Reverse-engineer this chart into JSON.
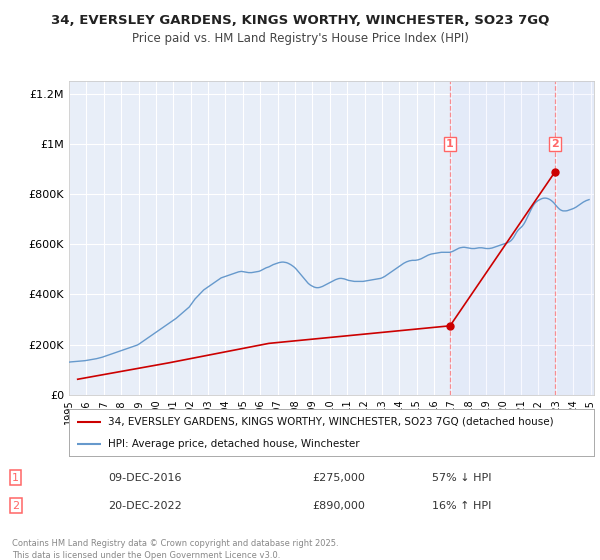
{
  "title_line1": "34, EVERSLEY GARDENS, KINGS WORTHY, WINCHESTER, SO23 7GQ",
  "title_line2": "Price paid vs. HM Land Registry's House Price Index (HPI)",
  "background_color": "#ffffff",
  "plot_bg_color": "#e8eef8",
  "grid_color": "#ffffff",
  "hpi_color": "#6699cc",
  "price_color": "#cc0000",
  "dashed_color": "#ff6666",
  "transaction1_date": "09-DEC-2016",
  "transaction1_price": 275000,
  "transaction1_hpi_diff": "57% ↓ HPI",
  "transaction2_date": "20-DEC-2022",
  "transaction2_price": 890000,
  "transaction2_hpi_diff": "16% ↑ HPI",
  "legend_label1": "34, EVERSLEY GARDENS, KINGS WORTHY, WINCHESTER, SO23 7GQ (detached house)",
  "legend_label2": "HPI: Average price, detached house, Winchester",
  "footer": "Contains HM Land Registry data © Crown copyright and database right 2025.\nThis data is licensed under the Open Government Licence v3.0.",
  "yticks": [
    0,
    200000,
    400000,
    600000,
    800000,
    1000000,
    1200000
  ],
  "ytick_labels": [
    "£0",
    "£200K",
    "£400K",
    "£600K",
    "£800K",
    "£1M",
    "£1.2M"
  ],
  "xmin_year": 1995,
  "xmax_year": 2025,
  "transaction1_x": 2016.92,
  "transaction2_x": 2022.97,
  "xtick_years": [
    1995,
    1996,
    1997,
    1998,
    1999,
    2000,
    2001,
    2002,
    2003,
    2004,
    2005,
    2006,
    2007,
    2008,
    2009,
    2010,
    2011,
    2012,
    2013,
    2014,
    2015,
    2016,
    2017,
    2018,
    2019,
    2020,
    2021,
    2022,
    2023,
    2024,
    2025
  ],
  "price_years": [
    1995.5,
    2000.75,
    2006.5,
    2016.92,
    2022.97
  ],
  "price_values": [
    62000,
    127500,
    205000,
    275000,
    890000
  ],
  "hpi_data": [
    [
      1995.0,
      130000
    ],
    [
      1995.083,
      131000
    ],
    [
      1995.167,
      131500
    ],
    [
      1995.25,
      132000
    ],
    [
      1995.333,
      132500
    ],
    [
      1995.417,
      133000
    ],
    [
      1995.5,
      133500
    ],
    [
      1995.583,
      134000
    ],
    [
      1995.667,
      134500
    ],
    [
      1995.75,
      135000
    ],
    [
      1995.833,
      135500
    ],
    [
      1995.917,
      136000
    ],
    [
      1996.0,
      137000
    ],
    [
      1996.083,
      138000
    ],
    [
      1996.167,
      139000
    ],
    [
      1996.25,
      140000
    ],
    [
      1996.333,
      141000
    ],
    [
      1996.417,
      142000
    ],
    [
      1996.5,
      143000
    ],
    [
      1996.583,
      144000
    ],
    [
      1996.667,
      145500
    ],
    [
      1996.75,
      147000
    ],
    [
      1996.833,
      148500
    ],
    [
      1996.917,
      150000
    ],
    [
      1997.0,
      152000
    ],
    [
      1997.083,
      154000
    ],
    [
      1997.167,
      156000
    ],
    [
      1997.25,
      158000
    ],
    [
      1997.333,
      160000
    ],
    [
      1997.417,
      162000
    ],
    [
      1997.5,
      164000
    ],
    [
      1997.583,
      166000
    ],
    [
      1997.667,
      168000
    ],
    [
      1997.75,
      170000
    ],
    [
      1997.833,
      172000
    ],
    [
      1997.917,
      174000
    ],
    [
      1998.0,
      176000
    ],
    [
      1998.083,
      178000
    ],
    [
      1998.167,
      180000
    ],
    [
      1998.25,
      182000
    ],
    [
      1998.333,
      184000
    ],
    [
      1998.417,
      186000
    ],
    [
      1998.5,
      188000
    ],
    [
      1998.583,
      190000
    ],
    [
      1998.667,
      192000
    ],
    [
      1998.75,
      194000
    ],
    [
      1998.833,
      196000
    ],
    [
      1998.917,
      198000
    ],
    [
      1999.0,
      201000
    ],
    [
      1999.083,
      205000
    ],
    [
      1999.167,
      209000
    ],
    [
      1999.25,
      213000
    ],
    [
      1999.333,
      217000
    ],
    [
      1999.417,
      221000
    ],
    [
      1999.5,
      225000
    ],
    [
      1999.583,
      229000
    ],
    [
      1999.667,
      233000
    ],
    [
      1999.75,
      237000
    ],
    [
      1999.833,
      241000
    ],
    [
      1999.917,
      245000
    ],
    [
      2000.0,
      249000
    ],
    [
      2000.083,
      253000
    ],
    [
      2000.167,
      257000
    ],
    [
      2000.25,
      261000
    ],
    [
      2000.333,
      265000
    ],
    [
      2000.417,
      269000
    ],
    [
      2000.5,
      273000
    ],
    [
      2000.583,
      277000
    ],
    [
      2000.667,
      281000
    ],
    [
      2000.75,
      285000
    ],
    [
      2000.833,
      289000
    ],
    [
      2000.917,
      293000
    ],
    [
      2001.0,
      297000
    ],
    [
      2001.083,
      301000
    ],
    [
      2001.167,
      305000
    ],
    [
      2001.25,
      310000
    ],
    [
      2001.333,
      315000
    ],
    [
      2001.417,
      320000
    ],
    [
      2001.5,
      325000
    ],
    [
      2001.583,
      330000
    ],
    [
      2001.667,
      335000
    ],
    [
      2001.75,
      340000
    ],
    [
      2001.833,
      345000
    ],
    [
      2001.917,
      350000
    ],
    [
      2002.0,
      358000
    ],
    [
      2002.083,
      366000
    ],
    [
      2002.167,
      374000
    ],
    [
      2002.25,
      382000
    ],
    [
      2002.333,
      388000
    ],
    [
      2002.417,
      394000
    ],
    [
      2002.5,
      400000
    ],
    [
      2002.583,
      406000
    ],
    [
      2002.667,
      412000
    ],
    [
      2002.75,
      418000
    ],
    [
      2002.833,
      422000
    ],
    [
      2002.917,
      426000
    ],
    [
      2003.0,
      430000
    ],
    [
      2003.083,
      434000
    ],
    [
      2003.167,
      438000
    ],
    [
      2003.25,
      442000
    ],
    [
      2003.333,
      446000
    ],
    [
      2003.417,
      450000
    ],
    [
      2003.5,
      454000
    ],
    [
      2003.583,
      458000
    ],
    [
      2003.667,
      462000
    ],
    [
      2003.75,
      466000
    ],
    [
      2003.833,
      468000
    ],
    [
      2003.917,
      470000
    ],
    [
      2004.0,
      472000
    ],
    [
      2004.083,
      474000
    ],
    [
      2004.167,
      476000
    ],
    [
      2004.25,
      478000
    ],
    [
      2004.333,
      480000
    ],
    [
      2004.417,
      482000
    ],
    [
      2004.5,
      484000
    ],
    [
      2004.583,
      486000
    ],
    [
      2004.667,
      488000
    ],
    [
      2004.75,
      490000
    ],
    [
      2004.833,
      491000
    ],
    [
      2004.917,
      492000
    ],
    [
      2005.0,
      491000
    ],
    [
      2005.083,
      490000
    ],
    [
      2005.167,
      489000
    ],
    [
      2005.25,
      488000
    ],
    [
      2005.333,
      487000
    ],
    [
      2005.417,
      487000
    ],
    [
      2005.5,
      487000
    ],
    [
      2005.583,
      488000
    ],
    [
      2005.667,
      489000
    ],
    [
      2005.75,
      490000
    ],
    [
      2005.833,
      491000
    ],
    [
      2005.917,
      492000
    ],
    [
      2006.0,
      494000
    ],
    [
      2006.083,
      497000
    ],
    [
      2006.167,
      500000
    ],
    [
      2006.25,
      503000
    ],
    [
      2006.333,
      506000
    ],
    [
      2006.417,
      508000
    ],
    [
      2006.5,
      510000
    ],
    [
      2006.583,
      513000
    ],
    [
      2006.667,
      516000
    ],
    [
      2006.75,
      519000
    ],
    [
      2006.833,
      521000
    ],
    [
      2006.917,
      523000
    ],
    [
      2007.0,
      525000
    ],
    [
      2007.083,
      527000
    ],
    [
      2007.167,
      528000
    ],
    [
      2007.25,
      529000
    ],
    [
      2007.333,
      529000
    ],
    [
      2007.417,
      528000
    ],
    [
      2007.5,
      527000
    ],
    [
      2007.583,
      525000
    ],
    [
      2007.667,
      522000
    ],
    [
      2007.75,
      519000
    ],
    [
      2007.833,
      515000
    ],
    [
      2007.917,
      511000
    ],
    [
      2008.0,
      506000
    ],
    [
      2008.083,
      500000
    ],
    [
      2008.167,
      493000
    ],
    [
      2008.25,
      486000
    ],
    [
      2008.333,
      479000
    ],
    [
      2008.417,
      472000
    ],
    [
      2008.5,
      465000
    ],
    [
      2008.583,
      458000
    ],
    [
      2008.667,
      451000
    ],
    [
      2008.75,
      445000
    ],
    [
      2008.833,
      440000
    ],
    [
      2008.917,
      436000
    ],
    [
      2009.0,
      433000
    ],
    [
      2009.083,
      430000
    ],
    [
      2009.167,
      428000
    ],
    [
      2009.25,
      427000
    ],
    [
      2009.333,
      427000
    ],
    [
      2009.417,
      428000
    ],
    [
      2009.5,
      430000
    ],
    [
      2009.583,
      432000
    ],
    [
      2009.667,
      435000
    ],
    [
      2009.75,
      438000
    ],
    [
      2009.833,
      441000
    ],
    [
      2009.917,
      444000
    ],
    [
      2010.0,
      447000
    ],
    [
      2010.083,
      450000
    ],
    [
      2010.167,
      453000
    ],
    [
      2010.25,
      456000
    ],
    [
      2010.333,
      459000
    ],
    [
      2010.417,
      461000
    ],
    [
      2010.5,
      463000
    ],
    [
      2010.583,
      464000
    ],
    [
      2010.667,
      464000
    ],
    [
      2010.75,
      463000
    ],
    [
      2010.833,
      462000
    ],
    [
      2010.917,
      460000
    ],
    [
      2011.0,
      458000
    ],
    [
      2011.083,
      456000
    ],
    [
      2011.167,
      455000
    ],
    [
      2011.25,
      454000
    ],
    [
      2011.333,
      453000
    ],
    [
      2011.417,
      452000
    ],
    [
      2011.5,
      452000
    ],
    [
      2011.583,
      452000
    ],
    [
      2011.667,
      452000
    ],
    [
      2011.75,
      452000
    ],
    [
      2011.833,
      452000
    ],
    [
      2011.917,
      452000
    ],
    [
      2012.0,
      453000
    ],
    [
      2012.083,
      454000
    ],
    [
      2012.167,
      455000
    ],
    [
      2012.25,
      456000
    ],
    [
      2012.333,
      457000
    ],
    [
      2012.417,
      458000
    ],
    [
      2012.5,
      459000
    ],
    [
      2012.583,
      460000
    ],
    [
      2012.667,
      461000
    ],
    [
      2012.75,
      462000
    ],
    [
      2012.833,
      463000
    ],
    [
      2012.917,
      464000
    ],
    [
      2013.0,
      466000
    ],
    [
      2013.083,
      469000
    ],
    [
      2013.167,
      472000
    ],
    [
      2013.25,
      476000
    ],
    [
      2013.333,
      480000
    ],
    [
      2013.417,
      484000
    ],
    [
      2013.5,
      488000
    ],
    [
      2013.583,
      492000
    ],
    [
      2013.667,
      496000
    ],
    [
      2013.75,
      500000
    ],
    [
      2013.833,
      504000
    ],
    [
      2013.917,
      508000
    ],
    [
      2014.0,
      512000
    ],
    [
      2014.083,
      516000
    ],
    [
      2014.167,
      520000
    ],
    [
      2014.25,
      524000
    ],
    [
      2014.333,
      527000
    ],
    [
      2014.417,
      530000
    ],
    [
      2014.5,
      532000
    ],
    [
      2014.583,
      534000
    ],
    [
      2014.667,
      535000
    ],
    [
      2014.75,
      536000
    ],
    [
      2014.833,
      536000
    ],
    [
      2014.917,
      536000
    ],
    [
      2015.0,
      537000
    ],
    [
      2015.083,
      538000
    ],
    [
      2015.167,
      540000
    ],
    [
      2015.25,
      542000
    ],
    [
      2015.333,
      545000
    ],
    [
      2015.417,
      548000
    ],
    [
      2015.5,
      551000
    ],
    [
      2015.583,
      554000
    ],
    [
      2015.667,
      557000
    ],
    [
      2015.75,
      559000
    ],
    [
      2015.833,
      561000
    ],
    [
      2015.917,
      562000
    ],
    [
      2016.0,
      563000
    ],
    [
      2016.083,
      564000
    ],
    [
      2016.167,
      565000
    ],
    [
      2016.25,
      566000
    ],
    [
      2016.333,
      567000
    ],
    [
      2016.417,
      568000
    ],
    [
      2016.5,
      568000
    ],
    [
      2016.583,
      568000
    ],
    [
      2016.667,
      568000
    ],
    [
      2016.75,
      568000
    ],
    [
      2016.833,
      568000
    ],
    [
      2016.917,
      568000
    ],
    [
      2017.0,
      570000
    ],
    [
      2017.083,
      572000
    ],
    [
      2017.167,
      575000
    ],
    [
      2017.25,
      578000
    ],
    [
      2017.333,
      581000
    ],
    [
      2017.417,
      584000
    ],
    [
      2017.5,
      586000
    ],
    [
      2017.583,
      587000
    ],
    [
      2017.667,
      588000
    ],
    [
      2017.75,
      588000
    ],
    [
      2017.833,
      587000
    ],
    [
      2017.917,
      586000
    ],
    [
      2018.0,
      585000
    ],
    [
      2018.083,
      584000
    ],
    [
      2018.167,
      583000
    ],
    [
      2018.25,
      583000
    ],
    [
      2018.333,
      583000
    ],
    [
      2018.417,
      584000
    ],
    [
      2018.5,
      585000
    ],
    [
      2018.583,
      586000
    ],
    [
      2018.667,
      586000
    ],
    [
      2018.75,
      586000
    ],
    [
      2018.833,
      585000
    ],
    [
      2018.917,
      584000
    ],
    [
      2019.0,
      583000
    ],
    [
      2019.083,
      583000
    ],
    [
      2019.167,
      583000
    ],
    [
      2019.25,
      584000
    ],
    [
      2019.333,
      585000
    ],
    [
      2019.417,
      587000
    ],
    [
      2019.5,
      589000
    ],
    [
      2019.583,
      591000
    ],
    [
      2019.667,
      593000
    ],
    [
      2019.75,
      595000
    ],
    [
      2019.833,
      597000
    ],
    [
      2019.917,
      599000
    ],
    [
      2020.0,
      601000
    ],
    [
      2020.083,
      603000
    ],
    [
      2020.167,
      605000
    ],
    [
      2020.25,
      607000
    ],
    [
      2020.333,
      610000
    ],
    [
      2020.417,
      614000
    ],
    [
      2020.5,
      620000
    ],
    [
      2020.583,
      628000
    ],
    [
      2020.667,
      638000
    ],
    [
      2020.75,
      648000
    ],
    [
      2020.833,
      656000
    ],
    [
      2020.917,
      662000
    ],
    [
      2021.0,
      667000
    ],
    [
      2021.083,
      673000
    ],
    [
      2021.167,
      681000
    ],
    [
      2021.25,
      691000
    ],
    [
      2021.333,
      703000
    ],
    [
      2021.417,
      715000
    ],
    [
      2021.5,
      727000
    ],
    [
      2021.583,
      739000
    ],
    [
      2021.667,
      750000
    ],
    [
      2021.75,
      759000
    ],
    [
      2021.833,
      766000
    ],
    [
      2021.917,
      771000
    ],
    [
      2022.0,
      775000
    ],
    [
      2022.083,
      778000
    ],
    [
      2022.167,
      781000
    ],
    [
      2022.25,
      783000
    ],
    [
      2022.333,
      784000
    ],
    [
      2022.417,
      784000
    ],
    [
      2022.5,
      783000
    ],
    [
      2022.583,
      781000
    ],
    [
      2022.667,
      778000
    ],
    [
      2022.75,
      774000
    ],
    [
      2022.833,
      769000
    ],
    [
      2022.917,
      763000
    ],
    [
      2023.0,
      756000
    ],
    [
      2023.083,
      749000
    ],
    [
      2023.167,
      743000
    ],
    [
      2023.25,
      738000
    ],
    [
      2023.333,
      735000
    ],
    [
      2023.417,
      733000
    ],
    [
      2023.5,
      733000
    ],
    [
      2023.583,
      733000
    ],
    [
      2023.667,
      734000
    ],
    [
      2023.75,
      736000
    ],
    [
      2023.833,
      738000
    ],
    [
      2023.917,
      740000
    ],
    [
      2024.0,
      742000
    ],
    [
      2024.083,
      745000
    ],
    [
      2024.167,
      748000
    ],
    [
      2024.25,
      752000
    ],
    [
      2024.333,
      756000
    ],
    [
      2024.417,
      760000
    ],
    [
      2024.5,
      764000
    ],
    [
      2024.583,
      768000
    ],
    [
      2024.667,
      771000
    ],
    [
      2024.75,
      774000
    ],
    [
      2024.833,
      776000
    ],
    [
      2024.917,
      778000
    ]
  ]
}
